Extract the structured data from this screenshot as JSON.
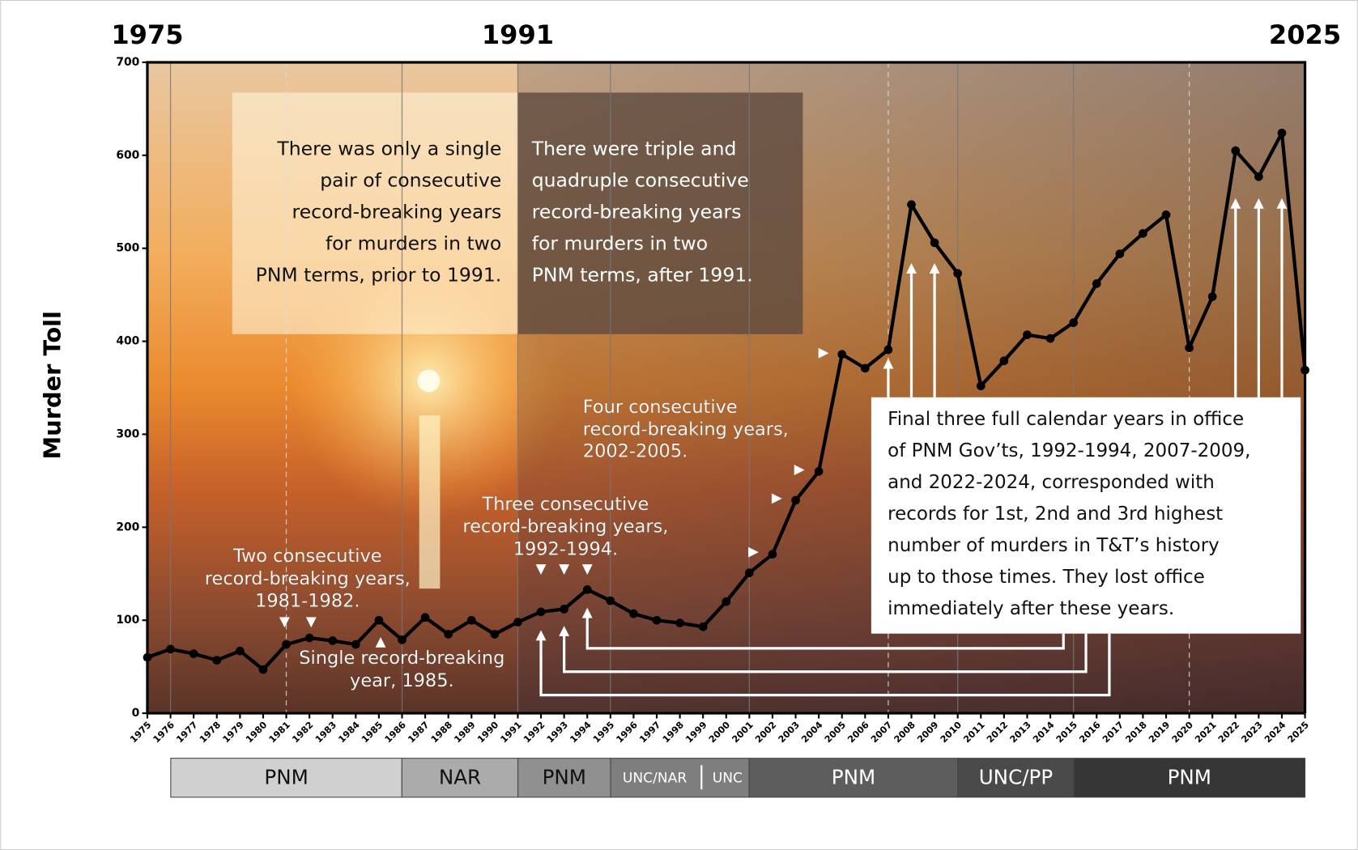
{
  "chart_data": {
    "type": "line",
    "top_labels": [
      "1975",
      "1991",
      "2025"
    ],
    "y_label": "Murder Toll",
    "x": [
      1975,
      1976,
      1977,
      1978,
      1979,
      1980,
      1981,
      1982,
      1983,
      1984,
      1985,
      1986,
      1987,
      1988,
      1989,
      1990,
      1991,
      1992,
      1993,
      1994,
      1995,
      1996,
      1997,
      1998,
      1999,
      2000,
      2001,
      2002,
      2003,
      2004,
      2005,
      2006,
      2007,
      2008,
      2009,
      2010,
      2011,
      2012,
      2013,
      2014,
      2015,
      2016,
      2017,
      2018,
      2019,
      2020,
      2021,
      2022,
      2023,
      2024,
      2025
    ],
    "series": [
      {
        "name": "Murder Toll",
        "color": "#000000",
        "values": [
          60,
          69,
          64,
          57,
          67,
          47,
          74,
          81,
          78,
          74,
          100,
          79,
          103,
          85,
          100,
          85,
          98,
          109,
          112,
          133,
          121,
          107,
          100,
          97,
          93,
          120,
          151,
          171,
          229,
          260,
          386,
          371,
          391,
          547,
          506,
          473,
          352,
          379,
          407,
          403,
          420,
          462,
          494,
          516,
          536,
          393,
          448,
          605,
          577,
          624,
          369
        ]
      }
    ],
    "xlim": [
      1975,
      2025
    ],
    "xticks": [
      1975,
      1976,
      1977,
      1978,
      1979,
      1980,
      1981,
      1982,
      1983,
      1984,
      1985,
      1986,
      1987,
      1988,
      1989,
      1990,
      1991,
      1992,
      1993,
      1994,
      1995,
      1996,
      1997,
      1998,
      1999,
      2000,
      2001,
      2002,
      2003,
      2004,
      2005,
      2006,
      2007,
      2008,
      2009,
      2010,
      2011,
      2012,
      2013,
      2014,
      2015,
      2016,
      2017,
      2018,
      2019,
      2020,
      2021,
      2022,
      2023,
      2024,
      2025
    ],
    "ylim": [
      0,
      700
    ],
    "yticks": [
      0,
      100,
      200,
      300,
      400,
      500,
      600,
      700
    ],
    "left_box": [
      "There was only a single",
      "pair of consecutive",
      "record-breaking years",
      "for murders in two",
      "PNM terms, prior to 1991."
    ],
    "right_box": [
      "There were triple and",
      "quadruple consecutive",
      "record-breaking years",
      "for murders in two",
      "PNM terms, after 1991."
    ],
    "final_box": [
      "Final three full calendar years in office",
      "of PNM Gov’ts, 1992-1994, 2007-2009,",
      "and 2022-2024, corresponded with",
      "records for 1st, 2nd and 3rd highest",
      "number of murders in T&T’s history",
      "up to those times. They lost office",
      "immediately after these years."
    ],
    "annotations": [
      [
        "Two consecutive",
        "record-breaking years,",
        "1981-1982."
      ],
      [
        "Single record-breaking",
        "year, 1985."
      ],
      [
        "Three consecutive",
        "record-breaking years,",
        "1992-1994."
      ],
      [
        "Four consecutive",
        "record-breaking years,",
        "2002-2005."
      ]
    ],
    "governments": [
      "PNM",
      "NAR",
      "PNM",
      "UNC/NAR",
      "UNC",
      "PNM",
      "UNC/PP",
      "PNM"
    ]
  }
}
